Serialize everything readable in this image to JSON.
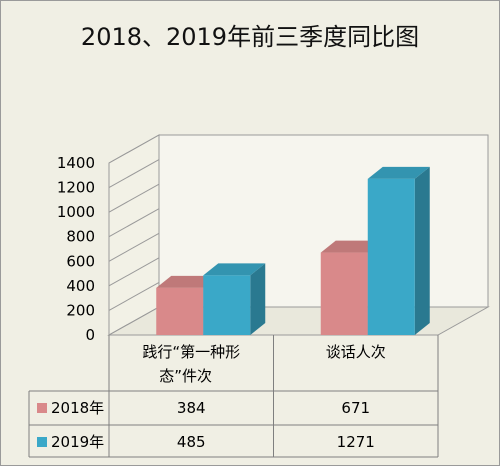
{
  "chart_data": {
    "type": "bar",
    "title": "2018、2019年前三季度同比图",
    "categories": [
      [
        "践行“第一种形",
        "态”件次"
      ],
      [
        "谈话人次"
      ]
    ],
    "series": [
      {
        "name": "2018年",
        "values": [
          384,
          671
        ],
        "value_labels": [
          "384",
          "671"
        ],
        "color": "#d9898a"
      },
      {
        "name": "2019年",
        "values": [
          485,
          1271
        ],
        "value_labels": [
          "485",
          "1271"
        ],
        "color": "#3aa8c8"
      }
    ],
    "ylim": [
      0,
      1400
    ],
    "yticks": [
      "0",
      "200",
      "400",
      "600",
      "800",
      "1000",
      "1200",
      "1400"
    ],
    "grid": false,
    "legend": "data-table"
  }
}
